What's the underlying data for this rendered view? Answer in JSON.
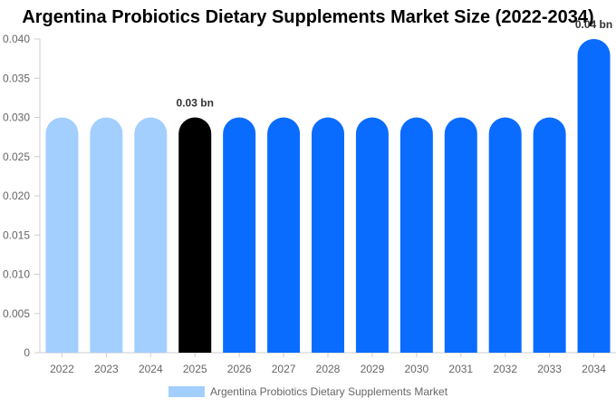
{
  "chart_data": {
    "type": "bar",
    "title": "Argentina Probiotics Dietary Supplements Market Size (2022-2034)",
    "categories": [
      "2022",
      "2023",
      "2024",
      "2025",
      "2026",
      "2027",
      "2028",
      "2029",
      "2030",
      "2031",
      "2032",
      "2033",
      "2034"
    ],
    "series": [
      {
        "name": "Argentina Probiotics Dietary Supplements Market",
        "values": [
          0.03,
          0.03,
          0.03,
          0.03,
          0.03,
          0.03,
          0.03,
          0.03,
          0.03,
          0.03,
          0.03,
          0.03,
          0.04
        ]
      }
    ],
    "ylim": [
      0,
      0.04
    ],
    "yticks": [
      "0",
      "0.005",
      "0.010",
      "0.015",
      "0.020",
      "0.025",
      "0.030",
      "0.035",
      "0.040"
    ],
    "data_labels": [
      {
        "category": "2025",
        "text": "0.03 bn"
      },
      {
        "category": "2034",
        "text": "0.04 bn"
      }
    ],
    "bar_colors": {
      "historical": "#a3cfff",
      "current": "#000000",
      "forecast": "#0a6cff"
    },
    "bar_color_by_category": [
      "historical",
      "historical",
      "historical",
      "current",
      "forecast",
      "forecast",
      "forecast",
      "forecast",
      "forecast",
      "forecast",
      "forecast",
      "forecast",
      "forecast"
    ],
    "legend": {
      "label": "Argentina Probiotics Dietary Supplements Market",
      "color": "#a3cfff",
      "position": "bottom"
    },
    "grid": false
  }
}
